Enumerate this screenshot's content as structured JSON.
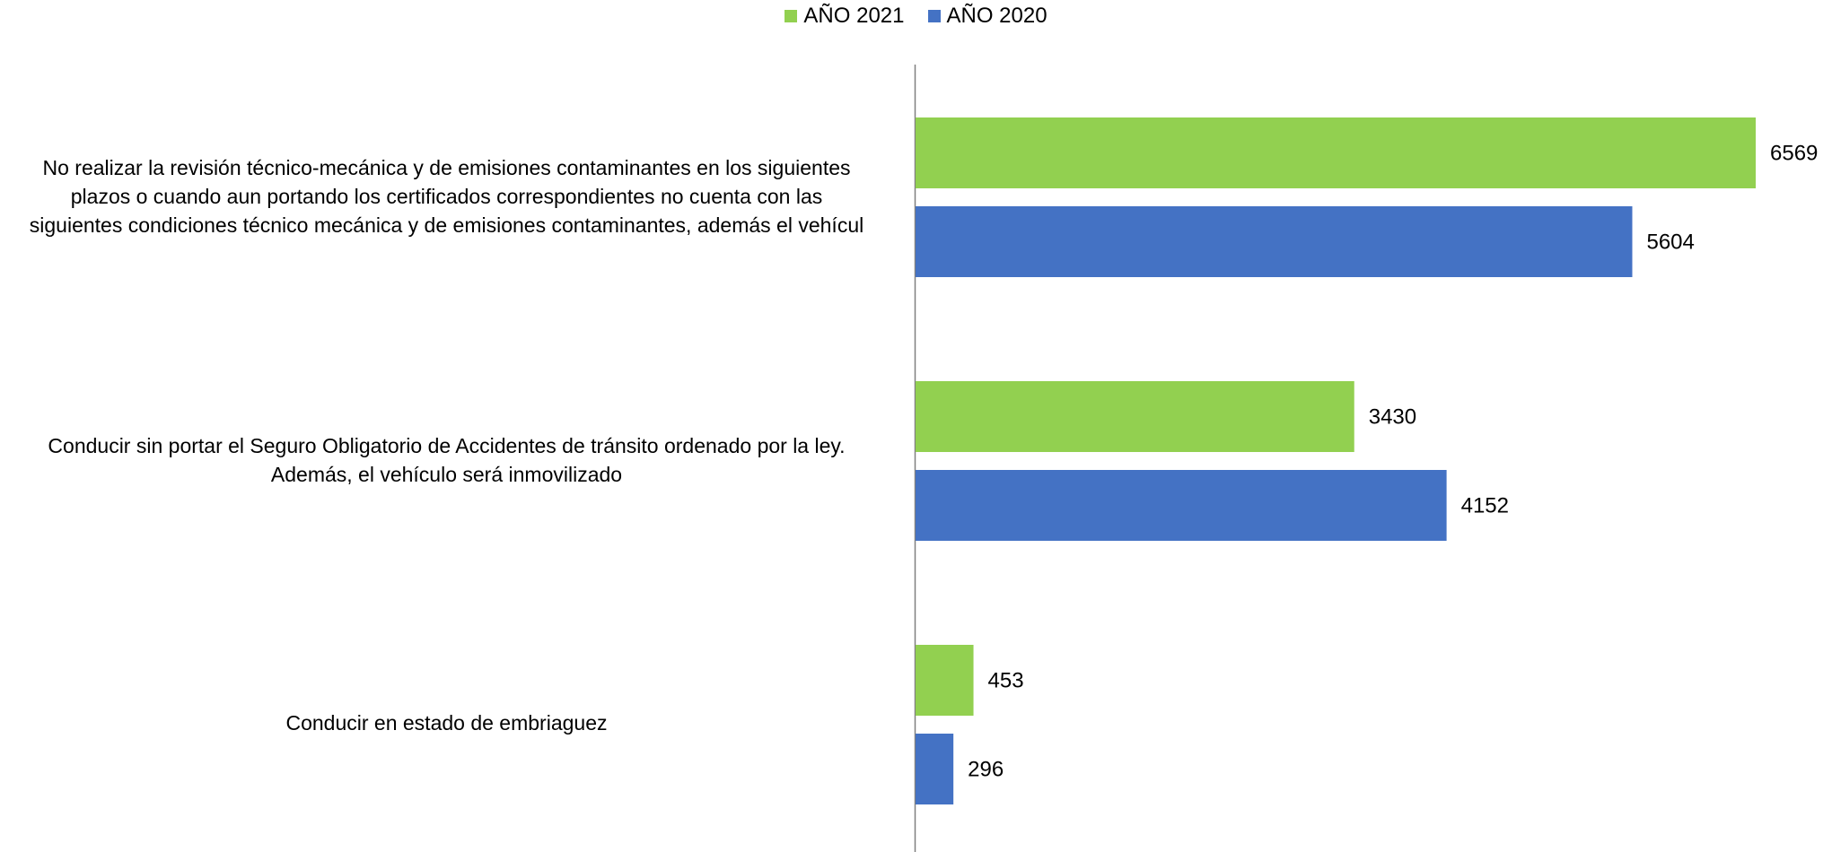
{
  "colors": {
    "series_2021": "#92d050",
    "series_2020": "#4472c4",
    "axis": "#808080",
    "text": "#000000"
  },
  "chart_data": {
    "type": "bar",
    "orientation": "horizontal",
    "categories": [
      {
        "lines": [
          "No realizar la revisión técnico-mecánica y de emisiones contaminantes en los siguientes",
          "plazos o cuando aun portando los certificados correspondientes no cuenta con las",
          "siguientes condiciones técnico mecánica y de emisiones contaminantes, además el vehícul"
        ]
      },
      {
        "lines": [
          "Conducir sin portar el Seguro Obligatorio de Accidentes de tránsito ordenado por la ley.",
          "Además, el vehículo será inmovilizado"
        ]
      },
      {
        "lines": [
          "Conducir en estado de embriaguez"
        ]
      }
    ],
    "series": [
      {
        "name": "AÑO 2021",
        "color": "#92d050",
        "values": [
          6569,
          3430,
          453
        ]
      },
      {
        "name": "AÑO 2020",
        "color": "#4472c4",
        "values": [
          5604,
          4152,
          296
        ]
      }
    ],
    "xlim": [
      0,
      7000
    ],
    "data_labels": true,
    "grid": false,
    "legend": "top-center",
    "title": "",
    "xlabel": "",
    "ylabel": ""
  }
}
